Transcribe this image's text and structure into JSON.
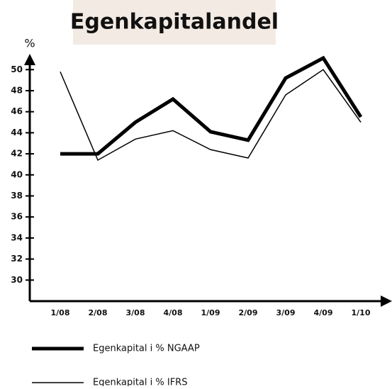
{
  "chart_data": {
    "type": "line",
    "title": "Egenkapitalandel",
    "y_label": "%",
    "categories": [
      "1/08",
      "2/08",
      "3/08",
      "4/08",
      "1/09",
      "2/09",
      "3/09",
      "4/09",
      "1/10"
    ],
    "series": [
      {
        "name": "Egenkapital i % NGAAP",
        "color": "#000000",
        "values": [
          42.0,
          42.0,
          45.0,
          47.2,
          44.1,
          43.3,
          49.2,
          51.1,
          45.5
        ]
      },
      {
        "name": "Egenkapital i % IFRS",
        "color": "#000000",
        "values": [
          49.8,
          41.4,
          43.4,
          44.2,
          42.4,
          41.6,
          47.6,
          50.0,
          45.0
        ]
      }
    ],
    "ylim": [
      28,
      51.5
    ],
    "yticks": [
      30,
      32,
      34,
      36,
      38,
      40,
      42,
      44,
      46,
      48,
      50
    ],
    "grid": false
  }
}
